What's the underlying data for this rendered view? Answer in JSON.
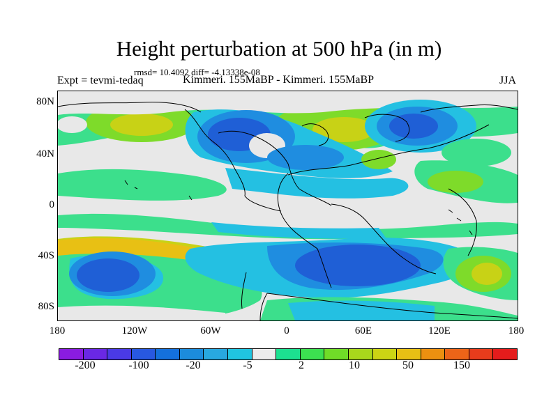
{
  "title": "Height perturbation at 500 hPa (in m)",
  "stats": "rmsd= 10.4092 diff= -4.13338e-08",
  "experiment": "Expt = tevmi-tedaq",
  "run": "Kimmeri. 155MaBP - Kimmeri. 155MaBP",
  "season": "JJA",
  "lat_labels": [
    "80N",
    "40N",
    "0",
    "40S",
    "80S"
  ],
  "lon_labels": [
    "180",
    "120W",
    "60W",
    "0",
    "60E",
    "120E",
    "180"
  ],
  "colorbar": {
    "labels": [
      "-200",
      "-100",
      "-20",
      "-5",
      "2",
      "10",
      "50",
      "150"
    ],
    "colors": [
      "#8a1ce0",
      "#6a28e4",
      "#4a3ae6",
      "#2858e0",
      "#1470dc",
      "#1c8cdc",
      "#28a8e0",
      "#20c4e0",
      "#ececec",
      "#1ce090",
      "#3ce050",
      "#70dc28",
      "#a8d81c",
      "#ccd414",
      "#e8c014",
      "#ec9010",
      "#ec6418",
      "#e83c1c",
      "#e41c1c"
    ]
  },
  "colors": {
    "background": "#e8e8e8",
    "blue_strong": "#1f5fd6",
    "blue_mid": "#1f8de0",
    "cyan": "#24c0e2",
    "green": "#3cdf8c",
    "lime": "#7edb2a",
    "yellow": "#c8d216"
  }
}
